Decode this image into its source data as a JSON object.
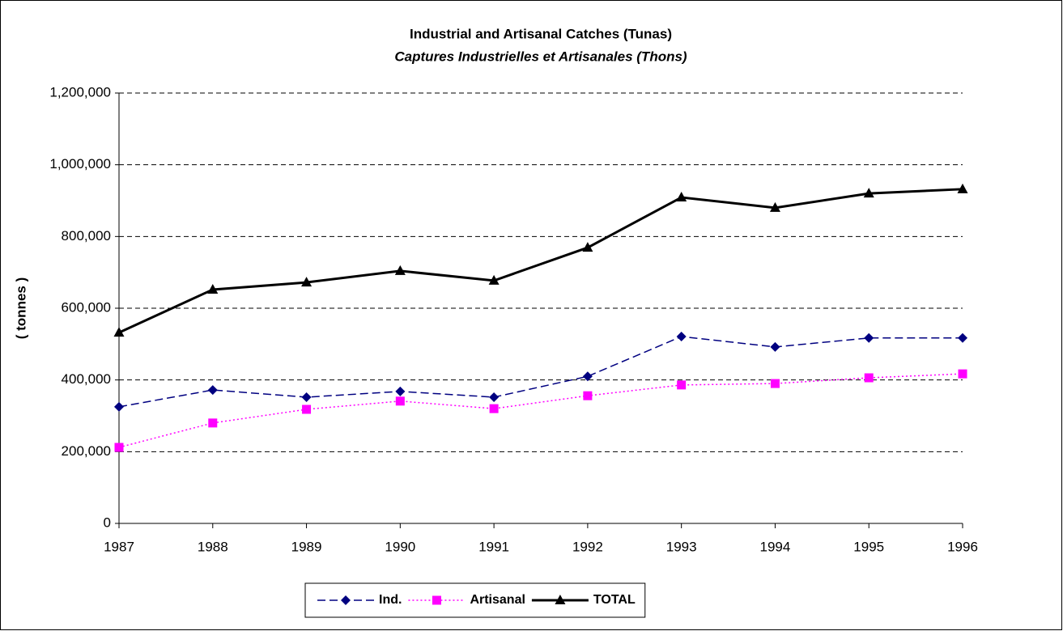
{
  "chart_data": {
    "type": "line",
    "title": "Industrial and Artisanal Catches (Tunas)",
    "subtitle": "Captures Industrielles et Artisanales (Thons)",
    "y_label": "( tonnes )",
    "x": [
      1987,
      1988,
      1989,
      1990,
      1991,
      1992,
      1993,
      1994,
      1995,
      1996
    ],
    "xlim": [
      1987,
      1996
    ],
    "xticks": [
      1987,
      1988,
      1989,
      1990,
      1991,
      1992,
      1993,
      1994,
      1995,
      1996
    ],
    "ylim": [
      0,
      1200000
    ],
    "yticks": [
      0,
      {
        "value": 200000,
        "label": "200,000"
      },
      {
        "value": 400000,
        "label": "400,000"
      },
      {
        "value": 600000,
        "label": "600,000"
      },
      {
        "value": 800000,
        "label": "800,000"
      },
      {
        "value": 1000000,
        "label": "1,000,000"
      },
      {
        "value": 1200000,
        "label": "1,200,000"
      }
    ],
    "grid": true,
    "legend": "bottom",
    "series": [
      {
        "name": "Ind.",
        "color": "#000080",
        "style": "dashed",
        "marker": "diamond",
        "values": [
          325000,
          372000,
          352000,
          368000,
          352000,
          410000,
          521000,
          492000,
          517000,
          517000
        ]
      },
      {
        "name": "Artisanal",
        "color": "#ff00ff",
        "style": "dotted",
        "marker": "square",
        "values": [
          212000,
          280000,
          318000,
          341000,
          320000,
          356000,
          386000,
          390000,
          406000,
          417000
        ]
      },
      {
        "name": "TOTAL",
        "color": "#000000",
        "style": "solid",
        "marker": "triangle",
        "values": [
          532000,
          652000,
          672000,
          704000,
          677000,
          769000,
          909000,
          880000,
          920000,
          932000
        ]
      }
    ]
  }
}
